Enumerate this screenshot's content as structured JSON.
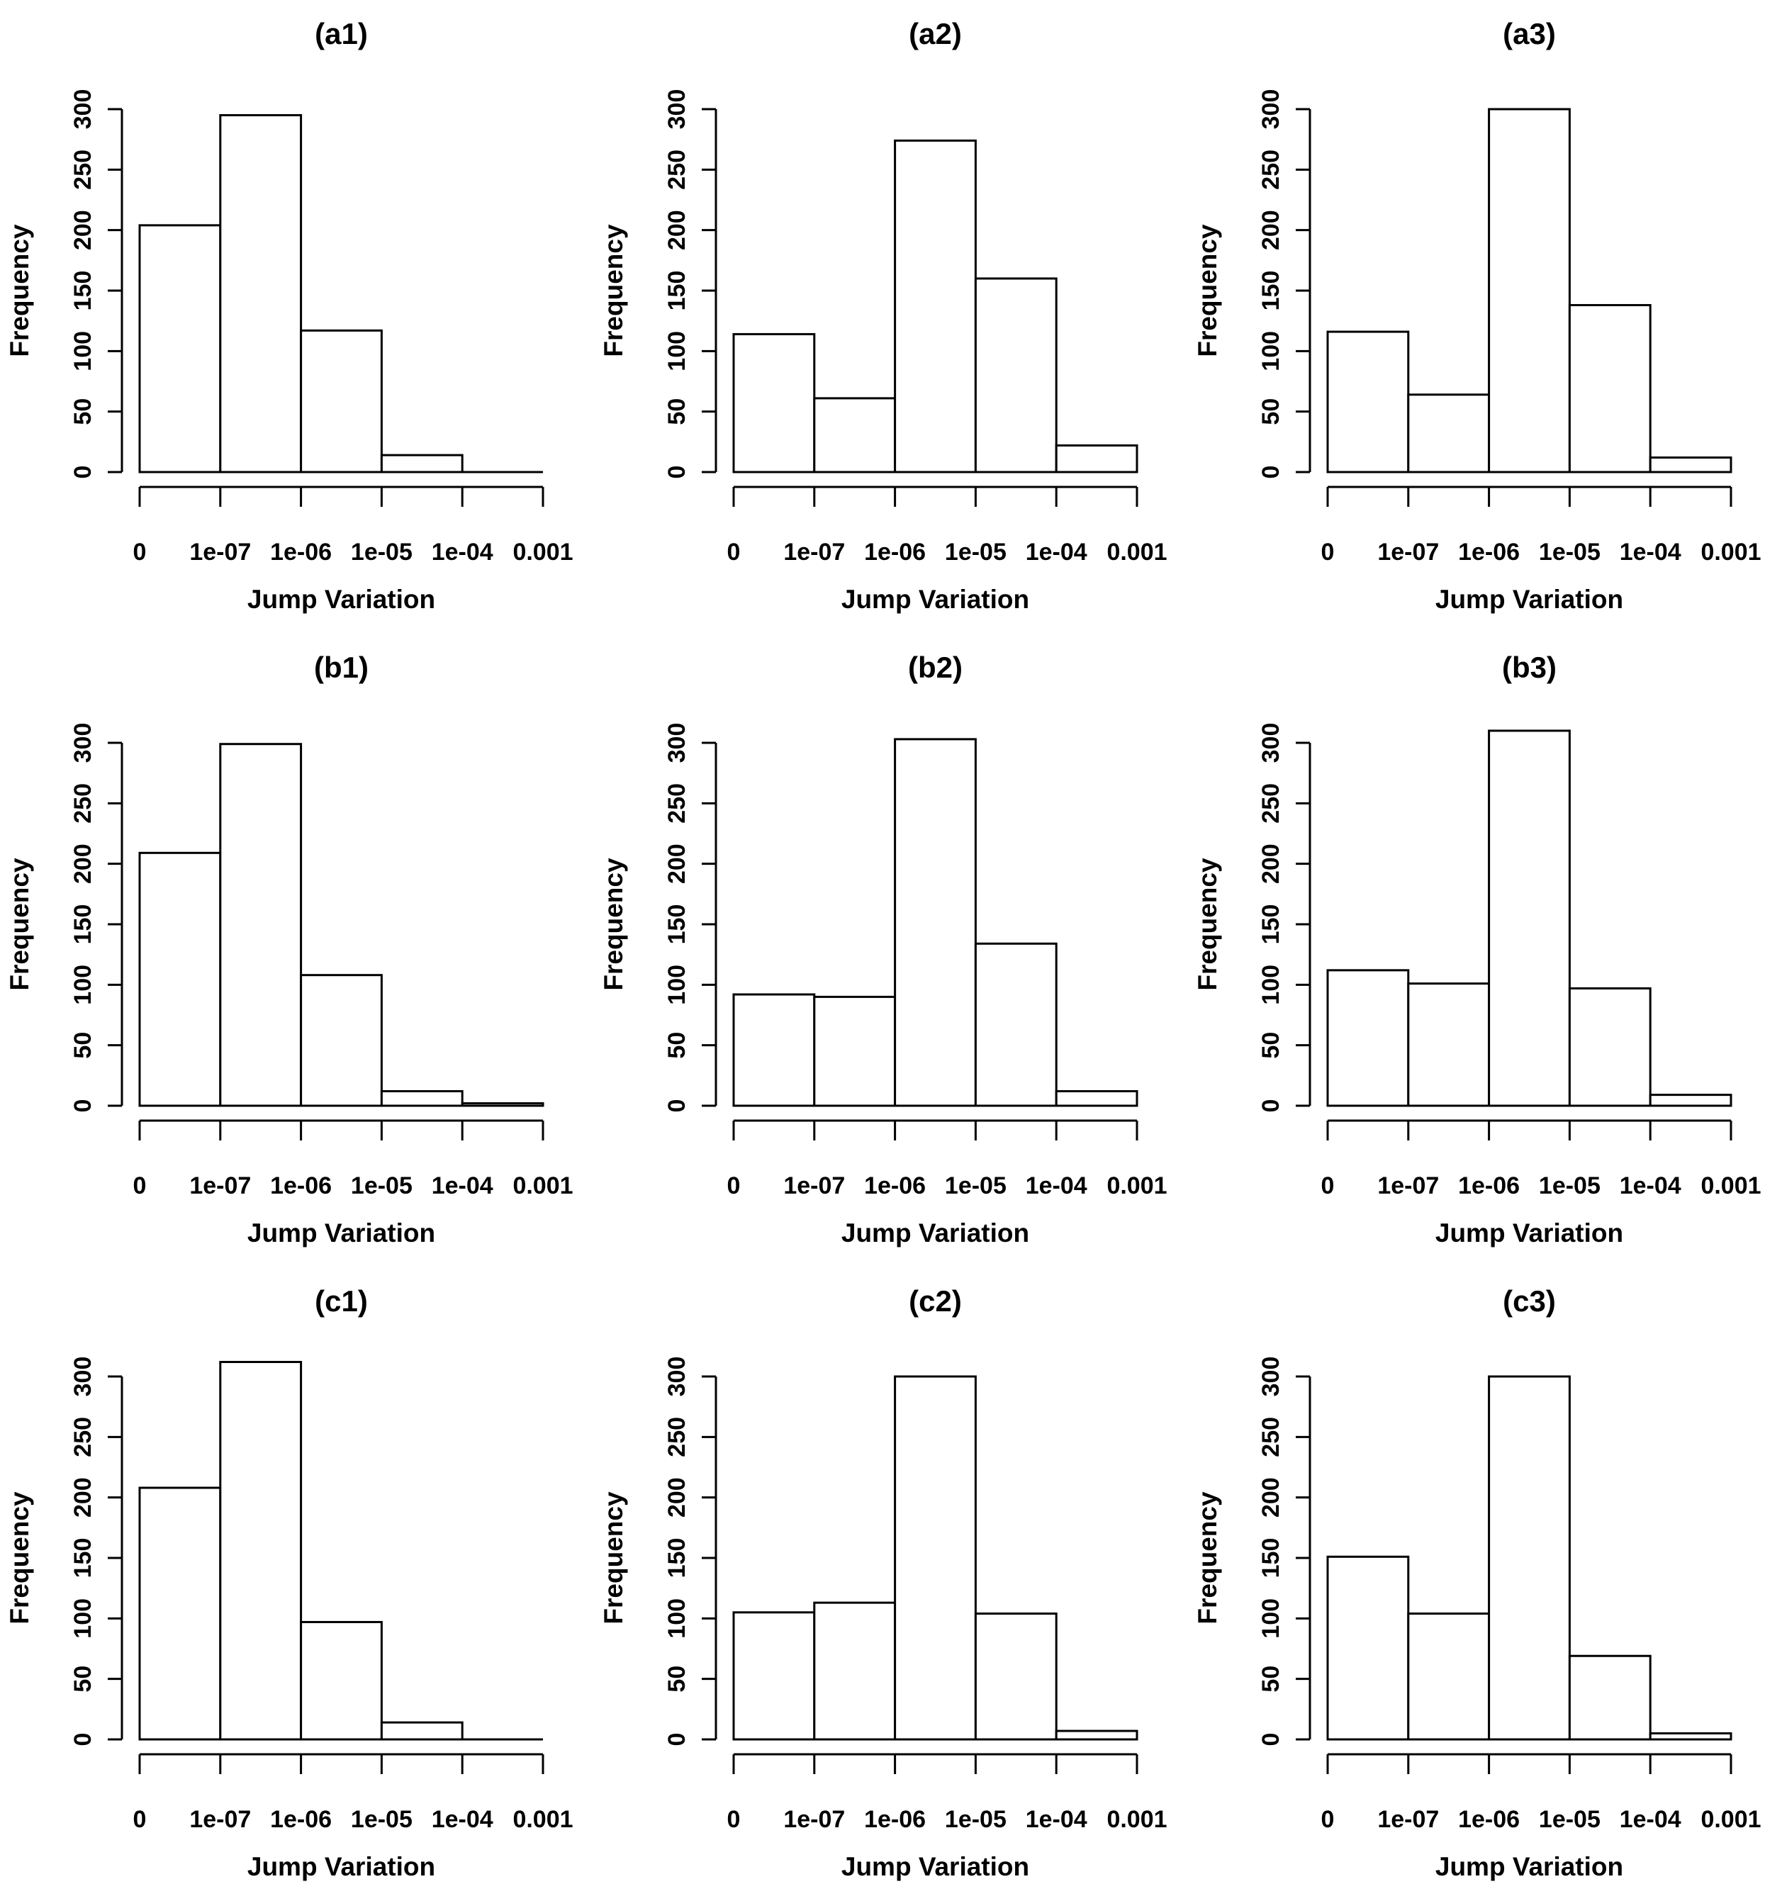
{
  "figure": {
    "background_color": "#ffffff",
    "line_color": "#000000",
    "rows": 3,
    "cols": 3
  },
  "chart_data": {
    "type": "bar",
    "subtype": "histogram-grid",
    "grid": [
      3,
      3
    ],
    "xlabel": "Jump Variation",
    "ylabel": "Frequency",
    "x_tick_labels": [
      "0",
      "1e-07",
      "1e-06",
      "1e-05",
      "1e-04",
      "0.001"
    ],
    "y_ticks": [
      0,
      50,
      100,
      150,
      200,
      250,
      300
    ],
    "ylim": [
      0,
      320
    ],
    "grid_lines": false,
    "bar_fill": "#ffffff",
    "bar_stroke": "#000000",
    "panels": [
      {
        "id": "a1",
        "title": "(a1)",
        "values": [
          204,
          295,
          117,
          14,
          0
        ]
      },
      {
        "id": "a2",
        "title": "(a2)",
        "values": [
          114,
          61,
          274,
          160,
          22
        ]
      },
      {
        "id": "a3",
        "title": "(a3)",
        "values": [
          116,
          64,
          300,
          138,
          12
        ]
      },
      {
        "id": "b1",
        "title": "(b1)",
        "values": [
          209,
          299,
          108,
          12,
          2
        ]
      },
      {
        "id": "b2",
        "title": "(b2)",
        "values": [
          92,
          90,
          303,
          134,
          12
        ]
      },
      {
        "id": "b3",
        "title": "(b3)",
        "values": [
          112,
          101,
          310,
          97,
          9
        ]
      },
      {
        "id": "c1",
        "title": "(c1)",
        "values": [
          208,
          312,
          97,
          14,
          0
        ]
      },
      {
        "id": "c2",
        "title": "(c2)",
        "values": [
          105,
          113,
          300,
          104,
          7
        ]
      },
      {
        "id": "c3",
        "title": "(c3)",
        "values": [
          151,
          104,
          300,
          69,
          5
        ]
      }
    ]
  }
}
